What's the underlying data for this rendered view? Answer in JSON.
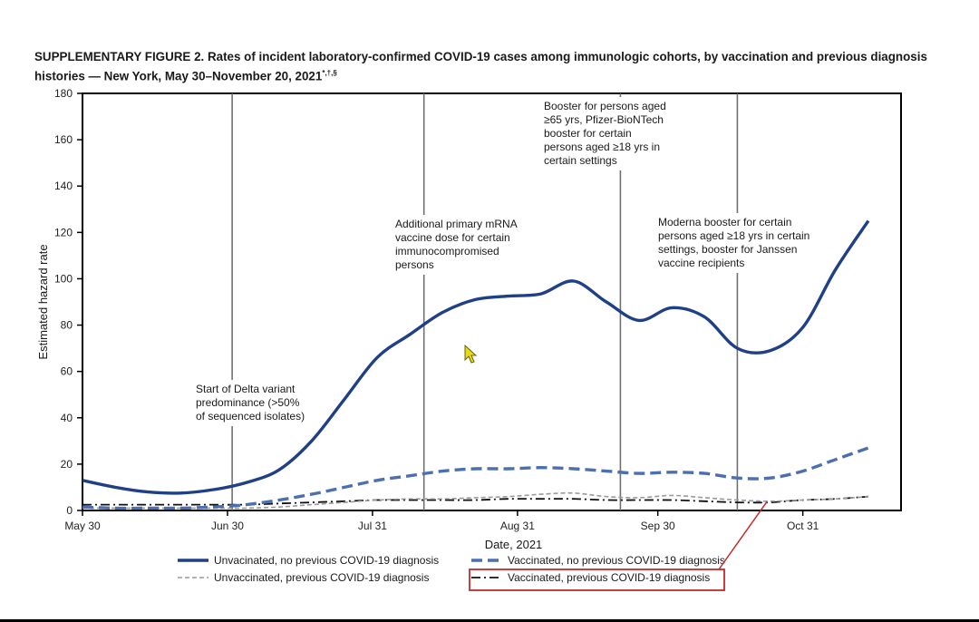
{
  "figure": {
    "title_main": "SUPPLEMENTARY FIGURE 2. Rates of incident laboratory-confirmed COVID-19 cases among immunologic cohorts, by vaccination and previous diagnosis histories — New York, May 30–November 20, 2021",
    "title_marks": "*,†,§"
  },
  "colors": {
    "unvacc_no_prev": "#1f3f86",
    "vacc_no_prev": "#4c6fb0",
    "unvacc_prev": "#9a9a9a",
    "vacc_prev": "#111111",
    "highlight_box": "#c62828",
    "event_line": "#707070"
  },
  "chart_data": {
    "type": "line",
    "xlabel": "Date, 2021",
    "ylabel": "Estimated hazard rate",
    "x_ticks": [
      {
        "label": "May 30",
        "day": 0
      },
      {
        "label": "Jun 30",
        "day": 31
      },
      {
        "label": "Jul 31",
        "day": 62
      },
      {
        "label": "Aug 31",
        "day": 93
      },
      {
        "label": "Sep 30",
        "day": 123
      },
      {
        "label": "Oct 31",
        "day": 154
      }
    ],
    "x_range_days": [
      0,
      175
    ],
    "ylim": [
      0,
      180
    ],
    "y_ticks": [
      0,
      20,
      40,
      60,
      80,
      100,
      120,
      140,
      160,
      180
    ],
    "grid": false,
    "x_days": [
      0,
      7,
      14,
      21,
      28,
      35,
      42,
      49,
      56,
      63,
      70,
      77,
      84,
      91,
      98,
      105,
      112,
      119,
      126,
      133,
      140,
      147,
      154,
      161,
      168
    ],
    "series": [
      {
        "name": "Unvacinated, no previous COVID-19 diagnosis",
        "style": "solid",
        "values": [
          13,
          10,
          8,
          7.5,
          9,
          12,
          17.5,
          30,
          48,
          66,
          76,
          85.5,
          91,
          92.5,
          93.5,
          99,
          90,
          82,
          87.5,
          83.5,
          70,
          69,
          79,
          104,
          125
        ]
      },
      {
        "name": "Vaccinated, no previous COVID-19 diagnosis",
        "style": "dashed",
        "values": [
          1.5,
          1,
          1,
          1,
          1.5,
          2.5,
          4.5,
          7,
          10,
          13,
          15,
          17,
          18,
          18,
          18.5,
          18,
          17,
          16,
          16.5,
          16,
          14,
          14,
          17,
          22,
          27
        ]
      },
      {
        "name": "Unvaccinated, previous COVID-19 diagnosis",
        "style": "dotted",
        "values": [
          1,
          1,
          1,
          1,
          1,
          1,
          1.5,
          2.5,
          3.5,
          4.5,
          5,
          5,
          5.5,
          6,
          7,
          7.5,
          6,
          5.5,
          6.5,
          5.5,
          4.5,
          4,
          4.5,
          5,
          6
        ]
      },
      {
        "name": "Vaccinated, previous COVID-19 diagnosis",
        "style": "dashdot",
        "values": [
          2.5,
          2.5,
          2.5,
          2.5,
          2.5,
          2.5,
          3,
          3.5,
          4,
          4.5,
          4.5,
          4.5,
          4.5,
          5,
          5,
          5,
          4.5,
          4.5,
          4.5,
          4,
          3.5,
          3.5,
          4.5,
          5,
          6
        ]
      }
    ],
    "events": [
      {
        "day": 32,
        "lines": [
          "Start of Delta variant",
          "predominance (>50%",
          "of sequenced isolates)"
        ]
      },
      {
        "day": 73,
        "lines": [
          "Additional primary mRNA",
          "vaccine dose for certain",
          "immunocompromised",
          "persons"
        ]
      },
      {
        "day": 115,
        "lines": [
          "Booster for persons aged",
          "≥65 yrs, Pfizer-BioNTech",
          "booster for certain",
          "persons aged ≥18 yrs in",
          "certain settings"
        ]
      },
      {
        "day": 140,
        "lines": [
          "Moderna booster for certain",
          "persons aged ≥18 yrs in certain",
          "settings, booster for Janssen",
          "vaccine recipients"
        ]
      }
    ],
    "highlight": {
      "series_index": 3,
      "label": "Vaccinated, previous COVID-19 diagnosis"
    }
  }
}
